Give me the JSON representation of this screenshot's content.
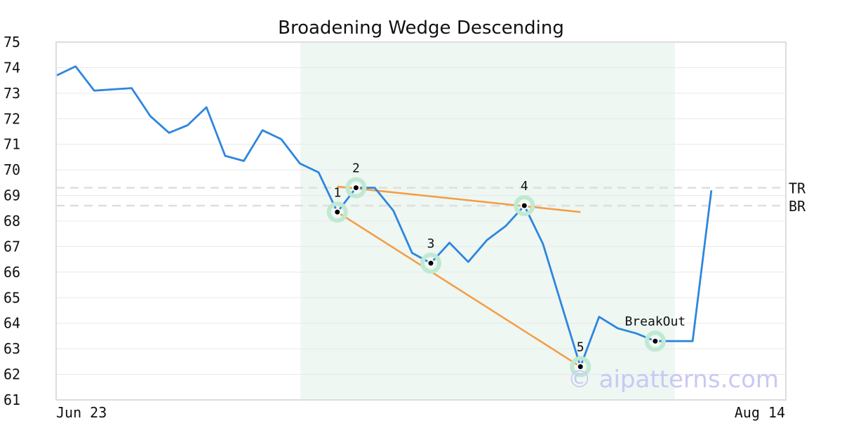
{
  "chart_data": {
    "type": "line",
    "title": "Broadening Wedge Descending",
    "ylim": [
      61,
      75
    ],
    "y_ticks": [
      "75",
      "74",
      "73",
      "72",
      "71",
      "70",
      "69",
      "68",
      "67",
      "66",
      "65",
      "64",
      "63",
      "62",
      "61"
    ],
    "x_ticks": [
      "Jun 23",
      "Aug 14"
    ],
    "grid": "horizontal",
    "series": [
      {
        "color": "#2e86de",
        "values": [
          73.7,
          74.05,
          73.1,
          73.15,
          73.2,
          72.1,
          71.45,
          71.75,
          72.45,
          70.55,
          70.35,
          71.55,
          71.2,
          70.25,
          69.9,
          68.35,
          69.3,
          69.3,
          68.4,
          66.75,
          66.35,
          67.15,
          66.4,
          67.25,
          67.8,
          68.6,
          67.1,
          64.7,
          62.3,
          64.25,
          63.8,
          63.6,
          63.3,
          63.3,
          63.3,
          69.2
        ]
      }
    ],
    "highlight_range": {
      "start_index": 13,
      "end_index": 32,
      "color": "#eef7f2"
    },
    "trendlines": [
      {
        "from": [
          15,
          69.35
        ],
        "to": [
          28,
          68.35
        ],
        "color": "#f59c42"
      },
      {
        "from": [
          15,
          68.35
        ],
        "to": [
          28,
          62.3
        ],
        "color": "#f59c42"
      }
    ],
    "levels": [
      {
        "label": "TR",
        "value": 69.3
      },
      {
        "label": "BR",
        "value": 68.6
      }
    ],
    "points": [
      {
        "label": "1",
        "index": 15,
        "value": 68.35
      },
      {
        "label": "2",
        "index": 16,
        "value": 69.3
      },
      {
        "label": "3",
        "index": 20,
        "value": 66.35
      },
      {
        "label": "4",
        "index": 25,
        "value": 68.6
      },
      {
        "label": "5",
        "index": 28,
        "value": 62.3
      },
      {
        "label": "BreakOut",
        "index": 32,
        "value": 63.3
      }
    ],
    "marker_colors": {
      "halo": "#bfe9d3",
      "dot": "#000000"
    },
    "watermark": "© aipatterns.com"
  }
}
